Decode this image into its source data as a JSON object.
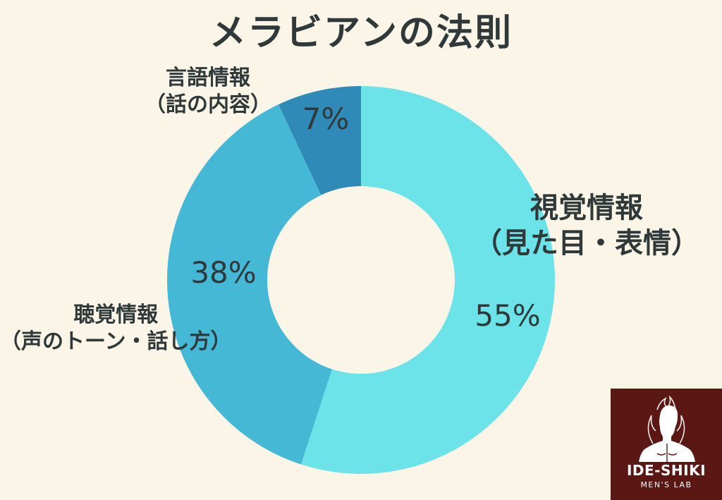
{
  "page": {
    "title": "メラビアンの法則",
    "background": "#fbf5e8"
  },
  "chart_data": {
    "type": "pie",
    "variant": "donut",
    "title": "メラビアンの法則",
    "start_angle_deg": 0,
    "direction": "clockwise",
    "slices": [
      {
        "key": "visual",
        "label_line1": "視覚情報",
        "label_line2": "（見た目・表情）",
        "value": 55,
        "value_label": "55%",
        "color": "#6ce3e8"
      },
      {
        "key": "vocal",
        "label_line1": "聴覚情報",
        "label_line2": "（声のトーン・話し方）",
        "value": 38,
        "value_label": "38%",
        "color": "#45b8d6"
      },
      {
        "key": "verbal",
        "label_line1": "言語情報",
        "label_line2": "（話の内容）",
        "value": 7,
        "value_label": "7%",
        "color": "#2f8ab8"
      }
    ]
  },
  "logo": {
    "main": "IDE-SHIKI",
    "sub": "MEN'S LAB",
    "color": "#5a1713"
  }
}
